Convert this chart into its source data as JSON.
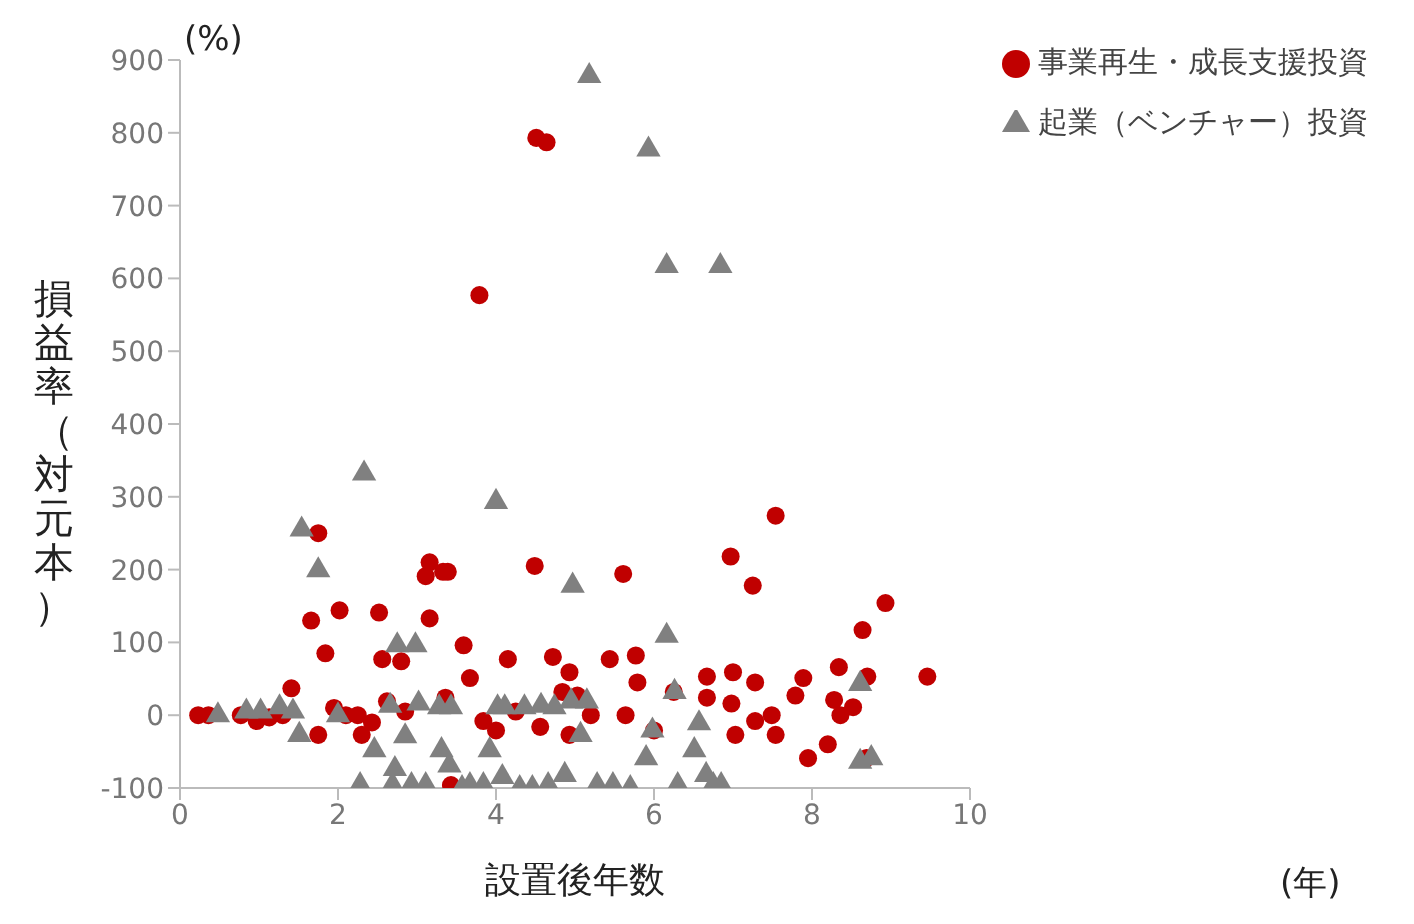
{
  "chart_data": {
    "type": "scatter",
    "xlabel": "設置後年数",
    "ylabel": "損益率（対元本）",
    "annotations": [
      "(%)",
      "(年)"
    ],
    "xlim": [
      0,
      10
    ],
    "xticks": [
      0,
      2,
      4,
      6,
      8,
      10
    ],
    "ylim": [
      -100,
      900
    ],
    "yticks": [
      -100,
      0,
      100,
      200,
      300,
      400,
      500,
      600,
      700,
      800,
      900
    ],
    "grid": false,
    "legend": "top right",
    "series": [
      {
        "name": "事業再生・成長支援投資",
        "color": "#c00000",
        "marker": "circle",
        "x": [
          0.23,
          0.36,
          0.77,
          0.97,
          1.13,
          1.3,
          1.41,
          1.66,
          1.75,
          1.75,
          1.84,
          1.95,
          2.02,
          2.1,
          2.25,
          2.3,
          2.43,
          2.52,
          2.56,
          2.62,
          2.8,
          2.85,
          3.11,
          3.16,
          3.16,
          3.33,
          3.39,
          3.36,
          3.43,
          3.59,
          3.67,
          3.79,
          3.84,
          4,
          4.15,
          4.25,
          4.49,
          4.51,
          4.64,
          4.56,
          4.72,
          4.84,
          4.93,
          4.93,
          5.03,
          5.2,
          5.44,
          5.61,
          5.64,
          5.77,
          5.79,
          6,
          6.25,
          6.67,
          6.67,
          6.97,
          7,
          6.98,
          7.03,
          7.25,
          7.28,
          7.28,
          7.49,
          7.54,
          7.54,
          7.79,
          7.89,
          7.95,
          8.2,
          8.28,
          8.34,
          8.36,
          8.52,
          8.64,
          8.7,
          8.69,
          8.93,
          9.46
        ],
        "values": [
          0,
          0,
          0,
          -8,
          -3,
          0,
          37,
          130,
          250,
          -27,
          85,
          10,
          144,
          0,
          0,
          -27,
          -10,
          141,
          77,
          19,
          74,
          5,
          191,
          133,
          210,
          197,
          197,
          24,
          -96,
          96,
          51,
          577,
          -8,
          -21,
          77,
          5,
          205,
          793,
          787,
          -16,
          80,
          32,
          59,
          -27,
          27,
          0,
          77,
          194,
          0,
          82,
          45,
          -21,
          32,
          53,
          24,
          218,
          59,
          16,
          -27,
          178,
          45,
          -8,
          0,
          274,
          -27,
          27,
          51,
          -59,
          -40,
          21,
          66,
          0,
          11,
          117,
          53,
          -59,
          154,
          53
        ]
      },
      {
        "name": "起業（ベンチャー）投資",
        "color": "#808080",
        "marker": "triangle",
        "x": [
          0.48,
          0.84,
          1.02,
          1.26,
          1.43,
          1.51,
          1.54,
          1.75,
          2,
          2.28,
          2.33,
          2.46,
          2.66,
          2.69,
          2.75,
          2.72,
          2.85,
          2.93,
          2.98,
          3.02,
          3.11,
          3.28,
          3.31,
          3.41,
          3.43,
          3.57,
          3.67,
          3.84,
          3.92,
          4,
          4.02,
          4.08,
          4.11,
          4.3,
          4.36,
          4.46,
          4.57,
          4.66,
          4.74,
          4.87,
          4.95,
          4.97,
          5.07,
          5.15,
          5.18,
          5.28,
          5.48,
          5.7,
          5.9,
          5.93,
          5.98,
          6.16,
          6.16,
          6.26,
          6.3,
          6.51,
          6.57,
          6.66,
          6.75,
          6.84,
          6.85,
          8.61,
          8.61,
          8.75
        ],
        "values": [
          0,
          5,
          5,
          11,
          5,
          -27,
          255,
          199,
          0,
          -96,
          332,
          -48,
          13,
          -96,
          96,
          -74,
          -29,
          -96,
          96,
          16,
          -96,
          11,
          -48,
          -69,
          11,
          -100,
          -96,
          -96,
          -48,
          293,
          11,
          -85,
          11,
          -100,
          11,
          -100,
          13,
          -96,
          11,
          -82,
          19,
          178,
          -27,
          19,
          878,
          -96,
          -96,
          -100,
          -59,
          777,
          -21,
          617,
          109,
          32,
          -96,
          -48,
          -11,
          -82,
          -96,
          617,
          -96,
          43,
          -64,
          -59
        ]
      }
    ]
  }
}
